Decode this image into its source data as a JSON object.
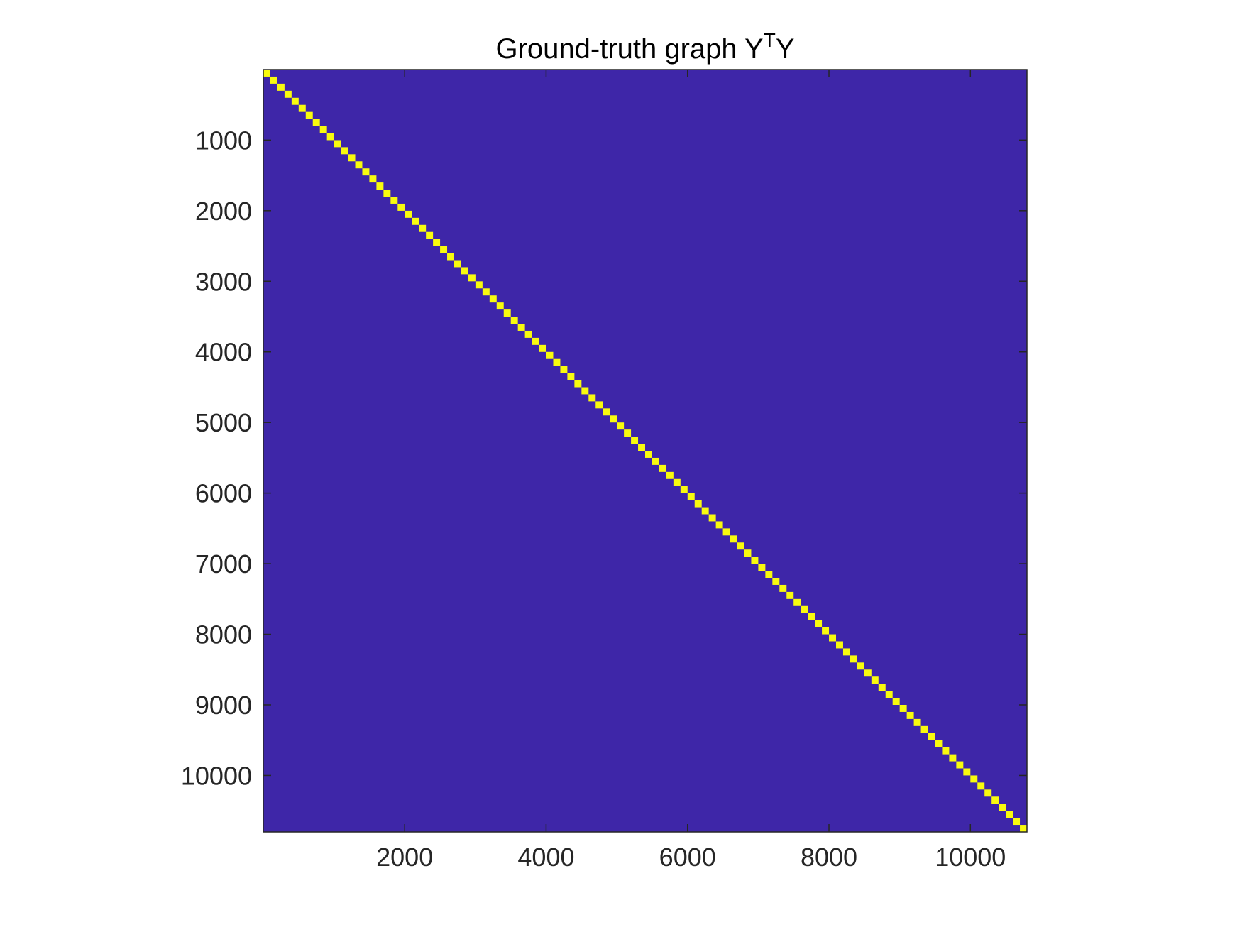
{
  "chart_data": {
    "type": "heatmap",
    "title": {
      "main": "Ground-truth graph Y",
      "superscript": "T",
      "suffix": "Y"
    },
    "xlabel": "",
    "ylabel": "",
    "xlim": [
      1,
      10800
    ],
    "ylim": [
      1,
      10800
    ],
    "y_direction": "reversed",
    "x_ticks": [
      2000,
      4000,
      6000,
      8000,
      10000
    ],
    "y_ticks": [
      1000,
      2000,
      3000,
      4000,
      5000,
      6000,
      7000,
      8000,
      9000,
      10000
    ],
    "x_tick_labels": [
      "2000",
      "4000",
      "6000",
      "8000",
      "10000"
    ],
    "y_tick_labels": [
      "1000",
      "2000",
      "3000",
      "4000",
      "5000",
      "6000",
      "7000",
      "8000",
      "9000",
      "10000"
    ],
    "matrix_size": 10800,
    "structure": "block-diagonal",
    "num_blocks": 108,
    "block_size": 100,
    "value_inside_blocks": 1,
    "value_outside_blocks": 0,
    "grid": false,
    "colors": {
      "background_value_color": "#3E26A8",
      "block_value_color": "#F9FB0E",
      "axis_color": "#262626"
    }
  }
}
